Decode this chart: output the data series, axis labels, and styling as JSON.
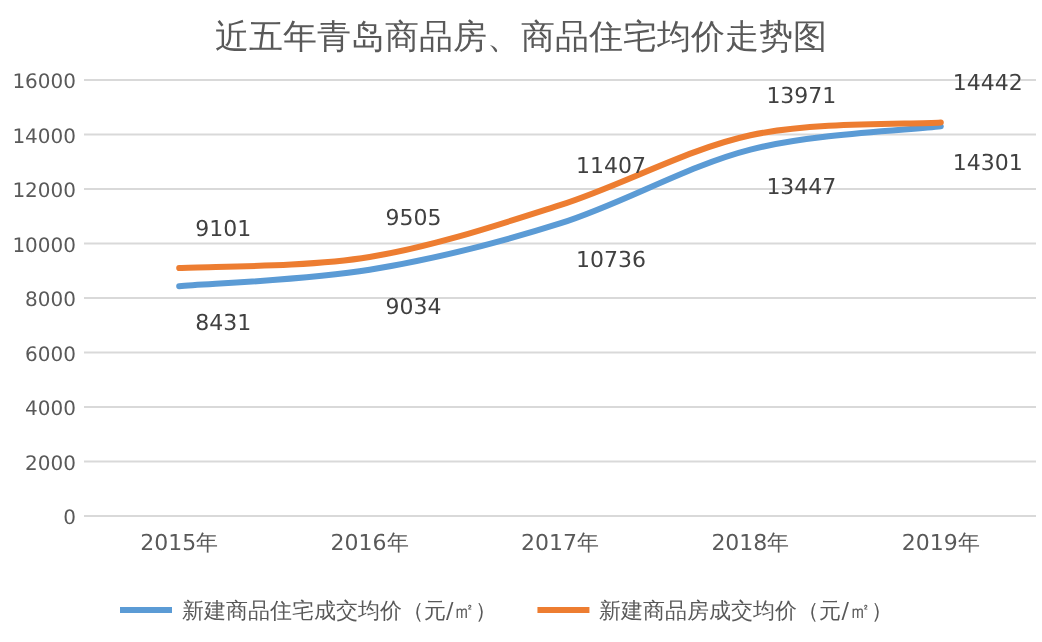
{
  "chart_data": {
    "type": "line",
    "title": "近五年青岛商品房、商品住宅均价走势图",
    "categories": [
      "2015年",
      "2016年",
      "2017年",
      "2018年",
      "2019年"
    ],
    "series": [
      {
        "name": "新建商品住宅成交均价（元/㎡）",
        "color": "#5b9bd5",
        "values": [
          8431,
          9034,
          10736,
          13447,
          14301
        ]
      },
      {
        "name": "新建商品房成交均价（元/㎡）",
        "color": "#ed7d31",
        "values": [
          9101,
          9505,
          11407,
          13971,
          14442
        ]
      }
    ],
    "ylim": [
      0,
      16000
    ],
    "yticks": [
      0,
      2000,
      4000,
      6000,
      8000,
      10000,
      12000,
      14000,
      16000
    ],
    "grid": "y",
    "legend": "bottom",
    "data_labels": true,
    "marker": "none",
    "line_style": "solid"
  }
}
